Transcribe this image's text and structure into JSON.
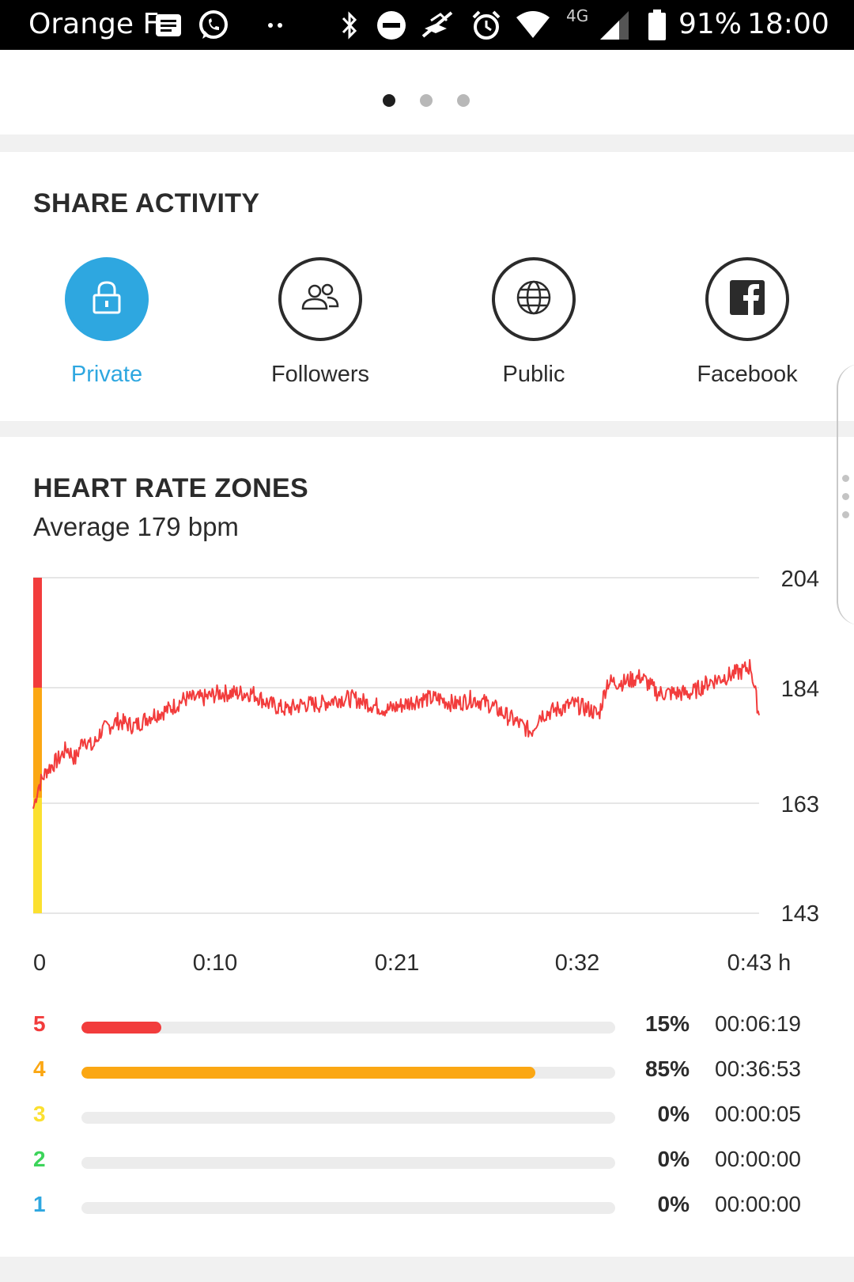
{
  "status_bar": {
    "carrier": "Orange F",
    "network": "4G",
    "battery": "91%",
    "time": "18:00",
    "icons": [
      "message-icon",
      "whatsapp-icon",
      "more-dots-icon",
      "bluetooth-icon",
      "do-not-disturb-icon",
      "no-gps-icon",
      "alarm-icon",
      "wifi-icon",
      "signal-icon",
      "battery-icon"
    ]
  },
  "pager": {
    "count": 3,
    "active_index": 0
  },
  "share": {
    "title": "SHARE ACTIVITY",
    "options": [
      {
        "label": "Private",
        "icon": "lock-icon",
        "selected": true
      },
      {
        "label": "Followers",
        "icon": "followers-icon",
        "selected": false
      },
      {
        "label": "Public",
        "icon": "globe-icon",
        "selected": false
      },
      {
        "label": "Facebook",
        "icon": "facebook-icon",
        "selected": false
      }
    ],
    "accent_color": "#2ea7e0"
  },
  "heart_rate": {
    "title": "HEART RATE ZONES",
    "subtitle": "Average 179 bpm",
    "zones": [
      {
        "number": "5",
        "color": "#f23c3c",
        "fraction": 0.15,
        "percent": "15%",
        "time": "00:06:19"
      },
      {
        "number": "4",
        "color": "#fba713",
        "fraction": 0.85,
        "percent": "85%",
        "time": "00:36:53"
      },
      {
        "number": "3",
        "color": "#fbe030",
        "fraction": 0.0,
        "percent": "0%",
        "time": "00:00:05"
      },
      {
        "number": "2",
        "color": "#3cd45a",
        "fraction": 0.0,
        "percent": "0%",
        "time": "00:00:00"
      },
      {
        "number": "1",
        "color": "#2ea7e0",
        "fraction": 0.0,
        "percent": "0%",
        "time": "00:00:00"
      }
    ]
  },
  "chart_data": {
    "type": "line",
    "y_ticks": [
      "204",
      "184",
      "163",
      "143"
    ],
    "x_ticks": [
      "0",
      "0:10",
      "0:21",
      "0:32",
      "0:43 h"
    ],
    "ylim": [
      143,
      204
    ],
    "xlim_minutes": [
      0,
      43
    ],
    "zone_bands": [
      {
        "zone": "5",
        "from": 184,
        "to": 204,
        "color": "#f23c3c"
      },
      {
        "zone": "4",
        "from": 164,
        "to": 184,
        "color": "#fba713"
      },
      {
        "zone": "3",
        "from": 143,
        "to": 164,
        "color": "#fbe030"
      }
    ],
    "series": [
      {
        "color": "#f23c3c",
        "x": [
          0,
          0.3,
          0.8,
          1.5,
          2,
          2.5,
          3,
          3.5,
          4,
          5,
          6,
          7,
          8,
          9,
          10,
          11,
          12,
          13,
          14,
          15,
          16,
          17,
          18,
          19,
          20,
          21,
          22,
          23,
          24,
          25,
          26,
          27,
          28,
          29,
          29.5,
          30,
          31,
          32,
          33,
          33.5,
          34,
          35,
          36,
          37,
          38,
          39,
          40,
          41,
          42,
          42.5,
          43
        ],
        "values": [
          162,
          166,
          169,
          171,
          173,
          171,
          175,
          173,
          176,
          178,
          177,
          179,
          180,
          182,
          182,
          183,
          183,
          183,
          181,
          180,
          181,
          181,
          182,
          182,
          181,
          180,
          181,
          182,
          182,
          181,
          182,
          181,
          179,
          177,
          176,
          179,
          180,
          181,
          180,
          179,
          185,
          185,
          186,
          183,
          183,
          183,
          185,
          186,
          187,
          188,
          179
        ]
      }
    ]
  }
}
